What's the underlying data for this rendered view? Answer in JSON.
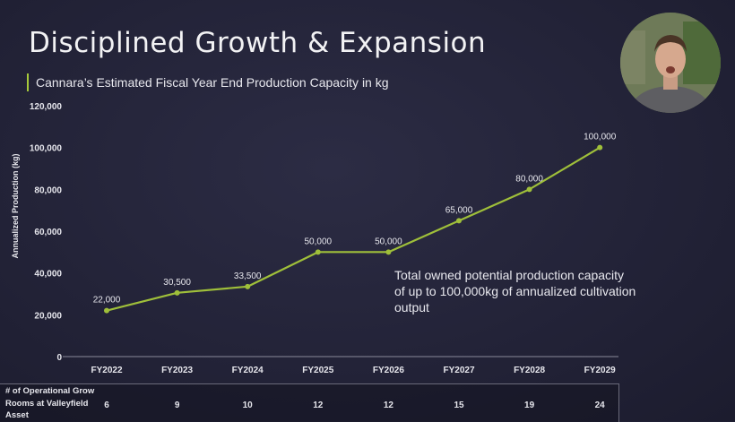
{
  "slide": {
    "title": "Disciplined Growth & Expansion",
    "subtitle": "Cannara’s Estimated Fiscal Year End Production Capacity in kg"
  },
  "chart_data": {
    "type": "line",
    "categories": [
      "FY2022",
      "FY2023",
      "FY2024",
      "FY2025",
      "FY2026",
      "FY2027",
      "FY2028",
      "FY2029"
    ],
    "values": [
      22000,
      30500,
      33500,
      50000,
      50000,
      65000,
      80000,
      100000
    ],
    "data_labels": [
      "22,000",
      "30,500",
      "33,500",
      "50,000",
      "50,000",
      "65,000",
      "80,000",
      "100,000"
    ],
    "ylabel": "Annualized Production (kg)",
    "xlabel": "",
    "ylim": [
      0,
      120000
    ],
    "yticks": [
      0,
      20000,
      40000,
      60000,
      80000,
      100000,
      120000
    ],
    "ytick_labels": [
      "0",
      "20,000",
      "40,000",
      "60,000",
      "80,000",
      "100,000",
      "120,000"
    ],
    "grid": false,
    "line_color": "#9fbf3a",
    "annotation": "Total owned potential production capacity of up to 100,000kg of annualized cultivation output"
  },
  "table": {
    "row_label": "# of Operational Grow Rooms at Valleyfield Asset",
    "values": [
      "6",
      "9",
      "10",
      "12",
      "12",
      "15",
      "19",
      "24"
    ]
  },
  "colors": {
    "background": "#24243a",
    "accent": "#a6c93a",
    "text": "#e6e6ec"
  }
}
